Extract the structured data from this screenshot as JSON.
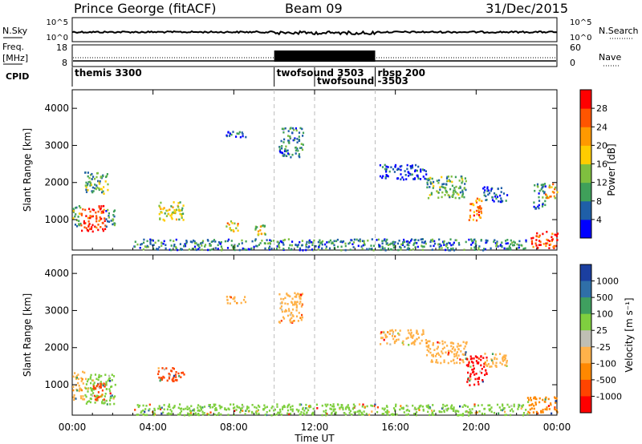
{
  "header": {
    "station": "Prince George (fitACF)",
    "beam": "Beam 09",
    "date": "31/Dec/2015"
  },
  "top_panel": {
    "left_label": "N.Sky",
    "left_ticks": [
      "10^5",
      "10^0"
    ],
    "right_ticks": [
      "10^5",
      "10^0"
    ],
    "right_label": "N.Search"
  },
  "freq_panel": {
    "left_label_1": "Freq.",
    "left_label_2": "[MHz]",
    "left_ticks": [
      "18",
      "8"
    ],
    "right_ticks": [
      "60",
      "0"
    ],
    "right_label": "Nave"
  },
  "cpid": {
    "label": "CPID",
    "segments": [
      {
        "start": 0.0,
        "name": "themis 3300"
      },
      {
        "start": 10.0,
        "name": "twofsound 3503"
      },
      {
        "start": 12.0,
        "name": "twofsound -3503"
      },
      {
        "start": 15.0,
        "name": "rbsp 200"
      }
    ]
  },
  "x_axis": {
    "label": "Time UT",
    "ticks": [
      "00:00",
      "04:00",
      "08:00",
      "12:00",
      "16:00",
      "20:00",
      "00:00"
    ],
    "range_hours": [
      0,
      24
    ]
  },
  "colors": {
    "power": [
      "#0000ff",
      "#1f5fa8",
      "#3fa05a",
      "#7fbf3f",
      "#ffcc00",
      "#ff9900",
      "#ff5500",
      "#ff0000"
    ]
  },
  "chart_data": [
    {
      "type": "heatmap",
      "title": "Power",
      "ylabel": "Slant Range [km]",
      "yticks": [
        1000,
        2000,
        3000,
        4000
      ],
      "ylim": [
        180,
        4500
      ],
      "colorbar": {
        "label": "Power [dB]",
        "ticks": [
          "4",
          "8",
          "12",
          "16",
          "20",
          "24",
          "28"
        ],
        "range": [
          0,
          32
        ]
      },
      "regions": [
        {
          "t0": 0.0,
          "t1": 0.4,
          "r0": 800,
          "r1": 1400,
          "level": 3
        },
        {
          "t0": 0.4,
          "t1": 1.6,
          "r0": 700,
          "r1": 1400,
          "level": 7
        },
        {
          "t0": 1.6,
          "t1": 2.1,
          "r0": 800,
          "r1": 1300,
          "level": 2
        },
        {
          "t0": 0.6,
          "t1": 1.8,
          "r0": 1700,
          "r1": 2300,
          "level": 3
        },
        {
          "t0": 4.2,
          "t1": 5.5,
          "r0": 1000,
          "r1": 1500,
          "level": 4
        },
        {
          "t0": 7.6,
          "t1": 8.2,
          "r0": 700,
          "r1": 1000,
          "level": 5
        },
        {
          "t0": 9.0,
          "t1": 9.6,
          "r0": 600,
          "r1": 1000,
          "level": 4
        },
        {
          "t0": 7.6,
          "t1": 8.6,
          "r0": 3200,
          "r1": 3400,
          "level": 1
        },
        {
          "t0": 10.2,
          "t1": 11.4,
          "r0": 2700,
          "r1": 3500,
          "level": 2
        },
        {
          "t0": 15.2,
          "t1": 17.5,
          "r0": 2100,
          "r1": 2500,
          "level": 1
        },
        {
          "t0": 17.5,
          "t1": 19.5,
          "r0": 1600,
          "r1": 2200,
          "level": 3
        },
        {
          "t0": 19.6,
          "t1": 20.3,
          "r0": 1000,
          "r1": 1600,
          "level": 6
        },
        {
          "t0": 20.3,
          "t1": 21.5,
          "r0": 1500,
          "r1": 1900,
          "level": 1
        },
        {
          "t0": 22.8,
          "t1": 23.4,
          "r0": 1300,
          "r1": 2000,
          "level": 2
        },
        {
          "t0": 23.4,
          "t1": 24.0,
          "r0": 1600,
          "r1": 2000,
          "level": 5
        },
        {
          "t0": 22.6,
          "t1": 24.0,
          "r0": 250,
          "r1": 700,
          "level": 7
        },
        {
          "t0": 3.0,
          "t1": 22.5,
          "r0": 200,
          "r1": 500,
          "level": 2
        }
      ]
    },
    {
      "type": "heatmap",
      "title": "Velocity",
      "ylabel": "Slant Range [km]",
      "yticks": [
        1000,
        2000,
        3000,
        4000
      ],
      "ylim": [
        180,
        4500
      ],
      "colorbar": {
        "label": "Velocity [m s⁻¹]",
        "ticks": [
          "1000",
          "500",
          "100",
          "25",
          "-25",
          "-100",
          "-500",
          "-1000"
        ],
        "bands": [
          "#1b3fa0",
          "#2f6fa8",
          "#3f9f5f",
          "#7fcf3f",
          "#bfbfb4",
          "#ffb24a",
          "#ff8800",
          "#ff4400",
          "#ff0000"
        ]
      },
      "regions": [
        {
          "t0": 0.0,
          "t1": 0.6,
          "r0": 600,
          "r1": 1400,
          "vel": "-25"
        },
        {
          "t0": 0.6,
          "t1": 2.1,
          "r0": 500,
          "r1": 1300,
          "vel": "100"
        },
        {
          "t0": 1.0,
          "t1": 1.6,
          "r0": 600,
          "r1": 1100,
          "vel": "-500"
        },
        {
          "t0": 4.2,
          "t1": 5.5,
          "r0": 1100,
          "r1": 1500,
          "vel": "-500"
        },
        {
          "t0": 7.6,
          "t1": 8.6,
          "r0": 3200,
          "r1": 3400,
          "vel": "-25"
        },
        {
          "t0": 10.2,
          "t1": 11.4,
          "r0": 2700,
          "r1": 3500,
          "vel": "-25"
        },
        {
          "t0": 15.2,
          "t1": 17.5,
          "r0": 2100,
          "r1": 2500,
          "vel": "-25"
        },
        {
          "t0": 17.5,
          "t1": 19.5,
          "r0": 1600,
          "r1": 2200,
          "vel": "-25"
        },
        {
          "t0": 19.5,
          "t1": 20.5,
          "r0": 1000,
          "r1": 1800,
          "vel": "-1000"
        },
        {
          "t0": 20.3,
          "t1": 21.5,
          "r0": 1500,
          "r1": 1900,
          "vel": "-25"
        },
        {
          "t0": 22.5,
          "t1": 24.0,
          "r0": 250,
          "r1": 700,
          "vel": "-100"
        },
        {
          "t0": 3.0,
          "t1": 22.5,
          "r0": 200,
          "r1": 500,
          "vel": "100"
        }
      ]
    }
  ]
}
